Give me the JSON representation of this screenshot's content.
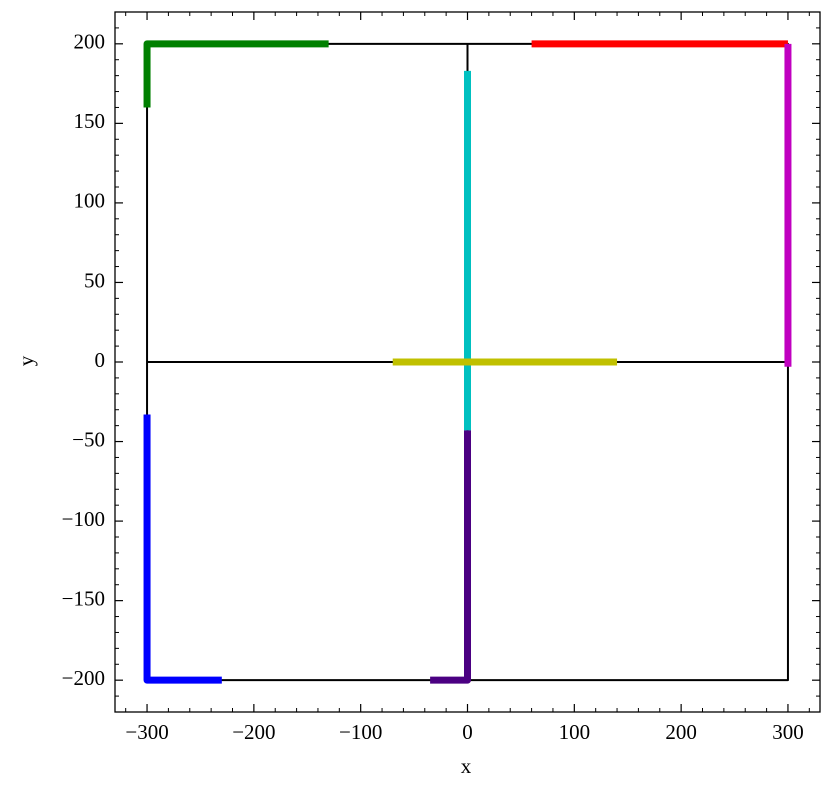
{
  "chart_data": {
    "type": "line",
    "x_label": "x",
    "y_label": "y",
    "xlim": [
      -330,
      330
    ],
    "ylim": [
      -220,
      220
    ],
    "xticks": [
      {
        "value": -300,
        "label": "−300"
      },
      {
        "value": -200,
        "label": "−200"
      },
      {
        "value": -100,
        "label": "−100"
      },
      0,
      100,
      200,
      300
    ],
    "yticks": [
      {
        "value": -200,
        "label": "−200"
      },
      {
        "value": -150,
        "label": "−150"
      },
      {
        "value": -100,
        "label": "−100"
      },
      {
        "value": -50,
        "label": "−50"
      },
      0,
      50,
      100,
      150,
      200
    ],
    "xminorticks": [
      -320,
      -280,
      -260,
      -240,
      -220,
      -180,
      -160,
      -140,
      -120,
      -80,
      -60,
      -40,
      -20,
      20,
      40,
      60,
      80,
      120,
      140,
      160,
      180,
      220,
      240,
      260,
      280,
      320
    ],
    "yminorticks": [
      -220,
      -210,
      -190,
      -180,
      -170,
      -160,
      -140,
      -130,
      -120,
      -110,
      -90,
      -80,
      -70,
      -60,
      -40,
      -30,
      -20,
      -10,
      10,
      20,
      30,
      40,
      60,
      70,
      80,
      90,
      110,
      120,
      130,
      140,
      160,
      170,
      180,
      190,
      210,
      220
    ],
    "series": [
      {
        "color": "#000000",
        "linewidth": 2,
        "x": [
          -300,
          300,
          300,
          -300,
          -300,
          null,
          -300,
          300,
          null,
          0,
          0
        ],
        "values": [
          200,
          200,
          -200,
          -200,
          200,
          null,
          0,
          0,
          null,
          200,
          -200
        ]
      },
      {
        "color": "#008000",
        "linewidth": 7,
        "x": [
          -300,
          -300,
          -130
        ],
        "values": [
          160,
          200,
          200
        ]
      },
      {
        "color": "#ff0000",
        "linewidth": 7,
        "x": [
          60,
          300
        ],
        "values": [
          200,
          200
        ]
      },
      {
        "color": "#c000c0",
        "linewidth": 7,
        "x": [
          300,
          300
        ],
        "values": [
          200,
          -3
        ]
      },
      {
        "color": "#00c0c0",
        "linewidth": 7,
        "x": [
          0,
          0
        ],
        "values": [
          183,
          -43
        ]
      },
      {
        "color": "#c0c000",
        "linewidth": 7,
        "x": [
          -70,
          140
        ],
        "values": [
          0,
          0
        ]
      },
      {
        "color": "#4b0082",
        "linewidth": 7,
        "x": [
          0,
          0,
          -35
        ],
        "values": [
          -43,
          -200,
          -200
        ]
      },
      {
        "color": "#0000ff",
        "linewidth": 7,
        "x": [
          -300,
          -300,
          -230
        ],
        "values": [
          -33,
          -200,
          -200
        ]
      }
    ]
  }
}
